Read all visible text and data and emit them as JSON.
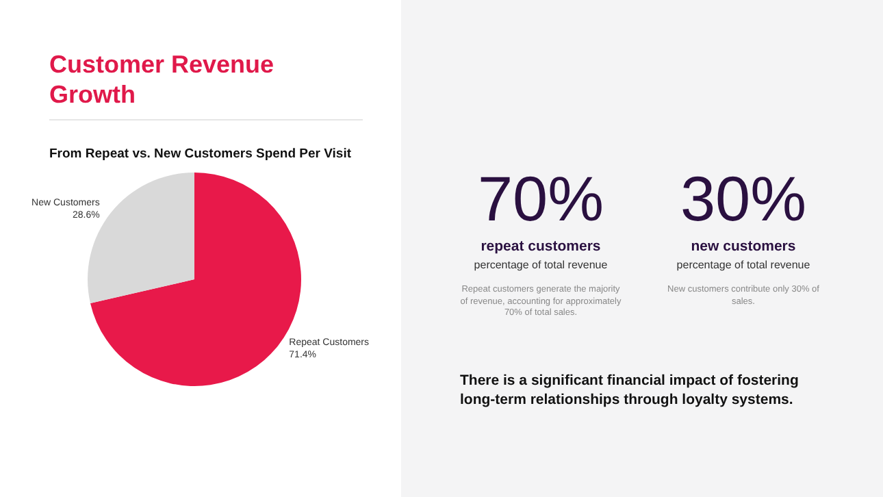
{
  "chart_data": [
    {
      "type": "pie",
      "title": "Customer Revenue Growth",
      "subtitle": "From Repeat vs. New Customers Spend Per Visit",
      "categories": [
        "Repeat Customers",
        "New Customers"
      ],
      "values": [
        71.4,
        28.6
      ],
      "colors": [
        "#e8194a",
        "#d9d9d9"
      ],
      "value_labels": [
        "71.4%",
        "28.6%"
      ],
      "legend": false
    },
    {
      "type": "other",
      "annotations": [
        "70%",
        "repeat customers",
        "percentage of total revenue",
        "Repeat customers generate the majority of revenue, accounting for approximately 70% of total sales.",
        "30%",
        "new customers",
        "percentage of total revenue",
        "New customers contribute only 30% of sales.",
        "There is a significant financial impact of fostering long-term relationships through loyalty systems."
      ]
    }
  ]
}
